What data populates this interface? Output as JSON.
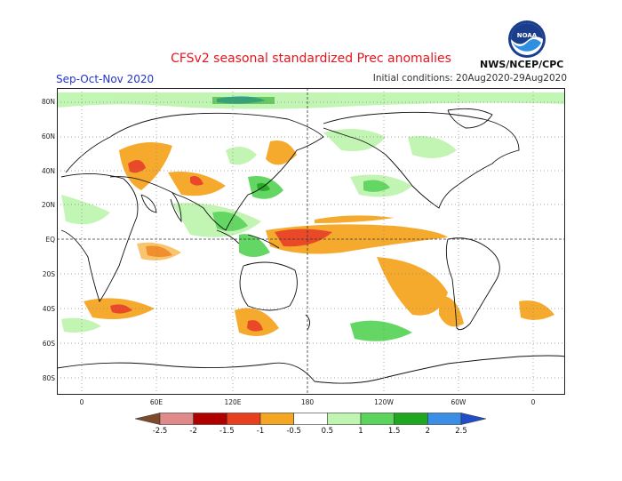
{
  "header": {
    "title": "CFSv2 seasonal standardized Prec anomalies",
    "season": "Sep-Oct-Nov 2020",
    "initial_conditions": "Initial conditions: 20Aug2020-29Aug2020",
    "org": "NWS/NCEP/CPC",
    "logo_text": "NOAA"
  },
  "map": {
    "lat_ticks": [
      "80N",
      "60N",
      "40N",
      "20N",
      "EQ",
      "20S",
      "40S",
      "60S",
      "80S"
    ],
    "lon_ticks": [
      "0",
      "60E",
      "120E",
      "180",
      "120W",
      "60W",
      "0"
    ],
    "reference_lines": [
      "equator",
      "date line 180"
    ]
  },
  "legend": {
    "labels": [
      "-2.5",
      "-2",
      "-1.5",
      "-1",
      "-0.5",
      "0.5",
      "1",
      "1.5",
      "2",
      "2.5"
    ],
    "colors": [
      "#7d4b2a",
      "#e08a8a",
      "#b00000",
      "#e8401e",
      "#f5a623",
      "#ffffff",
      "#bff5b0",
      "#5bd45b",
      "#1fa81f",
      "#3a8ee6",
      "#1f4ec8"
    ]
  }
}
